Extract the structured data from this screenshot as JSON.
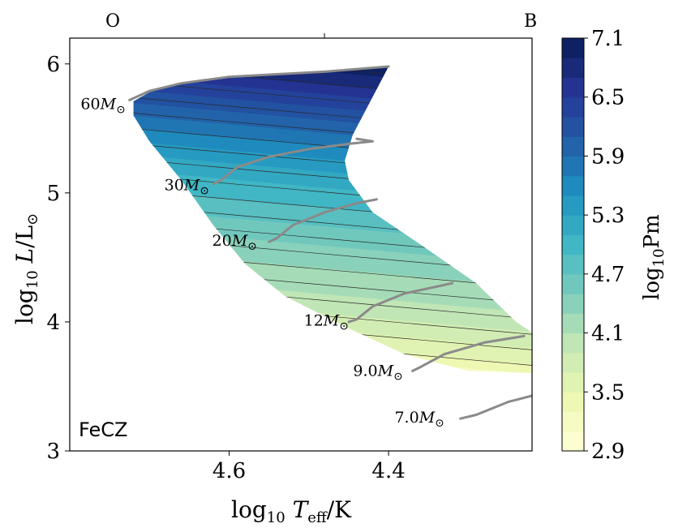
{
  "chart_data": {
    "type": "heatmap",
    "title": "",
    "xlabel": "log10 Teff/K",
    "ylabel": "log10 L/L⊙",
    "xlim": [
      4.8,
      4.22
    ],
    "ylim": [
      3.0,
      6.2
    ],
    "x_ticks": [
      "4.6",
      "4.4"
    ],
    "y_ticks": [
      "3",
      "4",
      "5",
      "6"
    ],
    "x_tick_values": [
      4.6,
      4.4
    ],
    "y_tick_values": [
      3,
      4,
      5,
      6
    ],
    "top_axis_labels": [
      "O",
      "B"
    ],
    "panel_label": "FeCZ",
    "colorbar": {
      "label": "log10Pm",
      "min": 2.9,
      "max": 7.1,
      "tick_labels": [
        "7.1",
        "6.5",
        "5.9",
        "5.3",
        "4.7",
        "4.1",
        "3.5",
        "2.9"
      ],
      "tick_values": [
        7.1,
        6.5,
        5.9,
        5.3,
        4.7,
        4.1,
        3.5,
        2.9
      ],
      "levels": 21,
      "colormap": "YlGnBu",
      "colors": [
        "#ffffd9",
        "#edf8b1",
        "#c7e9b4",
        "#7fcdbb",
        "#41b6c4",
        "#1d91c0",
        "#225ea8",
        "#253494",
        "#081d58"
      ]
    },
    "region_outline": [
      [
        4.72,
        5.71
      ],
      [
        4.7,
        5.78
      ],
      [
        4.66,
        5.85
      ],
      [
        4.62,
        5.89
      ],
      [
        4.56,
        5.92
      ],
      [
        4.5,
        5.94
      ],
      [
        4.44,
        5.96
      ],
      [
        4.4,
        5.98
      ],
      [
        4.445,
        5.45
      ],
      [
        4.455,
        5.25
      ],
      [
        4.45,
        5.1
      ],
      [
        4.42,
        4.85
      ],
      [
        4.36,
        4.6
      ],
      [
        4.29,
        4.3
      ],
      [
        4.24,
        4.0
      ],
      [
        4.18,
        3.75
      ],
      [
        4.14,
        3.62
      ],
      [
        4.2,
        3.6
      ],
      [
        4.3,
        3.62
      ],
      [
        4.38,
        3.75
      ],
      [
        4.45,
        3.95
      ],
      [
        4.53,
        4.2
      ],
      [
        4.58,
        4.45
      ],
      [
        4.62,
        4.75
      ],
      [
        4.66,
        5.1
      ],
      [
        4.7,
        5.4
      ],
      [
        4.72,
        5.6
      ]
    ],
    "color_field": [
      {
        "logL": 6.0,
        "logPm": 7.1
      },
      {
        "logL": 5.7,
        "logPm": 6.4
      },
      {
        "logL": 5.4,
        "logPm": 5.8
      },
      {
        "logL": 5.1,
        "logPm": 5.2
      },
      {
        "logL": 4.8,
        "logPm": 4.8
      },
      {
        "logL": 4.5,
        "logPm": 4.4
      },
      {
        "logL": 4.1,
        "logPm": 4.0
      },
      {
        "logL": 3.8,
        "logPm": 3.5
      },
      {
        "logL": 3.6,
        "logPm": 2.9
      }
    ],
    "outline_track": [
      [
        4.725,
        5.72
      ],
      [
        4.7,
        5.79
      ],
      [
        4.66,
        5.85
      ],
      [
        4.6,
        5.9
      ],
      [
        4.54,
        5.92
      ],
      [
        4.48,
        5.94
      ],
      [
        4.4,
        5.98
      ]
    ],
    "tracks": [
      {
        "label": "60M⊙",
        "label_pos": [
          4.73,
          5.65
        ],
        "points": []
      },
      {
        "label": "30M⊙",
        "label_pos": [
          4.625,
          5.02
        ],
        "points": [
          [
            4.62,
            5.07
          ],
          [
            4.61,
            5.1
          ],
          [
            4.59,
            5.2
          ],
          [
            4.55,
            5.28
          ],
          [
            4.5,
            5.34
          ],
          [
            4.45,
            5.38
          ],
          [
            4.42,
            5.4
          ],
          [
            4.44,
            5.42
          ]
        ]
      },
      {
        "label": "20M⊙",
        "label_pos": [
          4.565,
          4.59
        ],
        "points": [
          [
            4.55,
            4.62
          ],
          [
            4.54,
            4.65
          ],
          [
            4.52,
            4.75
          ],
          [
            4.48,
            4.85
          ],
          [
            4.44,
            4.92
          ],
          [
            4.415,
            4.95
          ]
        ]
      },
      {
        "label": "12M⊙",
        "label_pos": [
          4.45,
          3.97
        ],
        "points": [
          [
            4.45,
            4.0
          ],
          [
            4.44,
            4.02
          ],
          [
            4.42,
            4.12
          ],
          [
            4.38,
            4.22
          ],
          [
            4.335,
            4.28
          ],
          [
            4.32,
            4.3
          ]
        ]
      },
      {
        "label": "9.0M⊙",
        "label_pos": [
          4.382,
          3.58
        ],
        "points": [
          [
            4.37,
            3.62
          ],
          [
            4.36,
            3.65
          ],
          [
            4.33,
            3.75
          ],
          [
            4.28,
            3.84
          ],
          [
            4.24,
            3.88
          ],
          [
            4.23,
            3.89
          ]
        ]
      },
      {
        "label": "7.0M⊙",
        "label_pos": [
          4.33,
          3.22
        ],
        "points": [
          [
            4.31,
            3.25
          ],
          [
            4.29,
            3.28
          ],
          [
            4.25,
            3.38
          ],
          [
            4.2,
            3.46
          ],
          [
            4.16,
            3.5
          ],
          [
            4.15,
            3.51
          ]
        ]
      }
    ]
  }
}
